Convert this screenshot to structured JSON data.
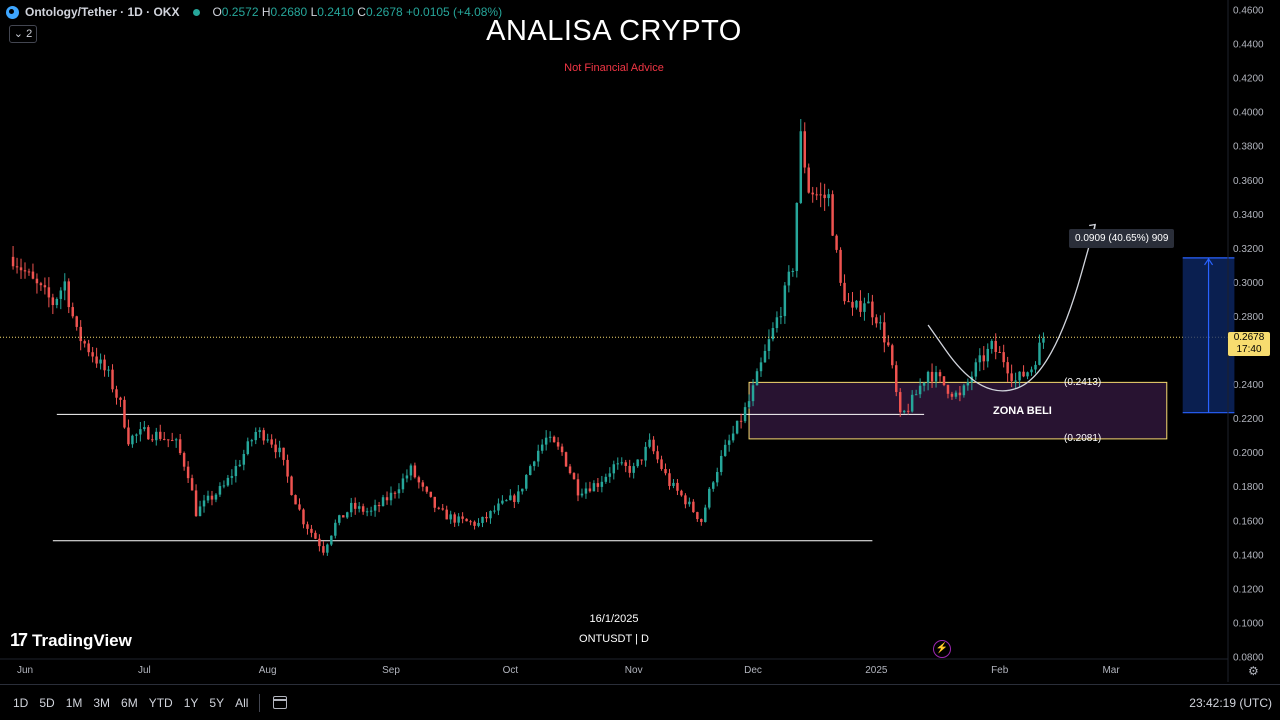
{
  "legend": {
    "symbol": "Ontology/Tether · 1D · OKX",
    "open_label": "O",
    "open": "0.2572",
    "high_label": "H",
    "high": "0.2680",
    "low_label": "L",
    "low": "0.2410",
    "close_label": "C",
    "close": "0.2678",
    "change": "+0.0105 (+4.08%)",
    "indicator_count": "⌄ 2",
    "up_color": "#26a69a",
    "down_color": "#ef5350"
  },
  "annotations": {
    "title": "ANALISA CRYPTO",
    "subtitle": "Not Financial Advice",
    "zone_label": "ZONA BELI",
    "zone_top_label": "(0.2413)",
    "zone_bottom_label": "(0.2081)",
    "measure_label": "0.0909 (40.65%) 909",
    "date_label": "16/1/2025",
    "pair_label": "ONTUSDT | D"
  },
  "last_price": {
    "value": "0.2678",
    "countdown": "17:40",
    "color": "#f7dc6f"
  },
  "branding": {
    "logo_text": "TradingView",
    "logo_mark": "17"
  },
  "toolbar": {
    "timeframes": [
      "1D",
      "5D",
      "1M",
      "3M",
      "6M",
      "YTD",
      "1Y",
      "5Y",
      "All"
    ],
    "clock": "23:42:19 (UTC)"
  },
  "chart_data": {
    "type": "candlestick",
    "y_axis": {
      "min": 0.08,
      "max": 0.46,
      "step": 0.02,
      "position": "right",
      "ticks": [
        "0.4600",
        "0.4400",
        "0.4200",
        "0.4000",
        "0.3800",
        "0.3600",
        "0.3400",
        "0.3200",
        "0.3000",
        "0.2800",
        "0.2600",
        "0.2400",
        "0.2200",
        "0.2000",
        "0.1800",
        "0.1600",
        "0.1400",
        "0.1200",
        "0.1000",
        "0.0800"
      ]
    },
    "x_axis": {
      "start": "2024-06-01",
      "end": "2025-03-05",
      "ticks": [
        {
          "label": "Jun",
          "date": "2024-06-01"
        },
        {
          "label": "Jul",
          "date": "2024-07-01"
        },
        {
          "label": "Aug",
          "date": "2024-08-01"
        },
        {
          "label": "Sep",
          "date": "2024-09-01"
        },
        {
          "label": "Oct",
          "date": "2024-10-01"
        },
        {
          "label": "Nov",
          "date": "2024-11-01"
        },
        {
          "label": "Dec",
          "date": "2024-12-01"
        },
        {
          "label": "2025",
          "date": "2025-01-01"
        },
        {
          "label": "Feb",
          "date": "2025-02-01"
        },
        {
          "label": "Mar",
          "date": "2025-03-01"
        }
      ]
    },
    "close_path": [
      [
        "2024-05-29",
        0.315
      ],
      [
        "2024-06-03",
        0.3
      ],
      [
        "2024-06-08",
        0.288
      ],
      [
        "2024-06-11",
        0.3
      ],
      [
        "2024-06-14",
        0.27
      ],
      [
        "2024-06-18",
        0.258
      ],
      [
        "2024-06-22",
        0.245
      ],
      [
        "2024-06-25",
        0.228
      ],
      [
        "2024-06-27",
        0.208
      ],
      [
        "2024-07-01",
        0.212
      ],
      [
        "2024-07-05",
        0.21
      ],
      [
        "2024-07-09",
        0.205
      ],
      [
        "2024-07-12",
        0.188
      ],
      [
        "2024-07-14",
        0.165
      ],
      [
        "2024-07-17",
        0.172
      ],
      [
        "2024-07-21",
        0.18
      ],
      [
        "2024-07-25",
        0.195
      ],
      [
        "2024-07-29",
        0.212
      ],
      [
        "2024-08-01",
        0.21
      ],
      [
        "2024-08-04",
        0.2
      ],
      [
        "2024-08-07",
        0.178
      ],
      [
        "2024-08-10",
        0.16
      ],
      [
        "2024-08-13",
        0.15
      ],
      [
        "2024-08-15",
        0.143
      ],
      [
        "2024-08-18",
        0.158
      ],
      [
        "2024-08-22",
        0.168
      ],
      [
        "2024-08-27",
        0.165
      ],
      [
        "2024-09-01",
        0.175
      ],
      [
        "2024-09-06",
        0.19
      ],
      [
        "2024-09-09",
        0.178
      ],
      [
        "2024-09-13",
        0.165
      ],
      [
        "2024-09-18",
        0.16
      ],
      [
        "2024-09-23",
        0.158
      ],
      [
        "2024-09-28",
        0.168
      ],
      [
        "2024-10-03",
        0.175
      ],
      [
        "2024-10-07",
        0.198
      ],
      [
        "2024-10-10",
        0.208
      ],
      [
        "2024-10-14",
        0.2
      ],
      [
        "2024-10-18",
        0.178
      ],
      [
        "2024-10-23",
        0.182
      ],
      [
        "2024-10-27",
        0.192
      ],
      [
        "2024-11-01",
        0.19
      ],
      [
        "2024-11-05",
        0.205
      ],
      [
        "2024-11-10",
        0.182
      ],
      [
        "2024-11-14",
        0.172
      ],
      [
        "2024-11-18",
        0.16
      ],
      [
        "2024-11-21",
        0.185
      ],
      [
        "2024-11-24",
        0.202
      ],
      [
        "2024-11-27",
        0.215
      ],
      [
        "2024-11-30",
        0.23
      ],
      [
        "2024-12-04",
        0.258
      ],
      [
        "2024-12-08",
        0.285
      ],
      [
        "2024-12-11",
        0.31
      ],
      [
        "2024-12-13",
        0.385
      ],
      [
        "2024-12-15",
        0.355
      ],
      [
        "2024-12-18",
        0.35
      ],
      [
        "2024-12-20",
        0.35
      ],
      [
        "2024-12-23",
        0.298
      ],
      [
        "2024-12-26",
        0.282
      ],
      [
        "2024-12-29",
        0.29
      ],
      [
        "2025-01-01",
        0.28
      ],
      [
        "2025-01-04",
        0.262
      ],
      [
        "2025-01-07",
        0.22
      ],
      [
        "2025-01-10",
        0.23
      ],
      [
        "2025-01-14",
        0.248
      ],
      [
        "2025-01-18",
        0.24
      ],
      [
        "2025-01-22",
        0.232
      ],
      [
        "2025-01-26",
        0.25
      ],
      [
        "2025-01-30",
        0.262
      ],
      [
        "2025-02-02",
        0.255
      ],
      [
        "2025-02-05",
        0.242
      ],
      [
        "2025-02-09",
        0.25
      ],
      [
        "2025-02-12",
        0.2678
      ]
    ],
    "horizontal_lines": [
      {
        "y": 0.2225,
        "from": "2024-06-09",
        "to": "2025-01-13",
        "color": "#ffffff"
      },
      {
        "y": 0.1483,
        "from": "2024-06-08",
        "to": "2024-12-31",
        "color": "#ffffff"
      }
    ],
    "zone": {
      "top": 0.2413,
      "bottom": 0.2081,
      "from": "2024-11-30",
      "to": "2025-03-15",
      "fill": "#2a1434",
      "border": "#f7dc6f"
    },
    "measure": {
      "from_price": 0.2235,
      "to_price": 0.3144,
      "from": "2025-03-19",
      "to": "2025-04-01",
      "delta": 0.0909,
      "percent": 40.65,
      "bars": 909,
      "color": "#2962ff"
    },
    "projection_curve": [
      [
        "2025-01-14",
        0.275
      ],
      [
        "2025-01-23",
        0.245
      ],
      [
        "2025-02-01",
        0.234
      ],
      [
        "2025-02-10",
        0.242
      ],
      [
        "2025-02-18",
        0.276
      ],
      [
        "2025-02-25",
        0.334
      ]
    ],
    "last_price_line": 0.2678,
    "grid": false,
    "crosshair_date": "2025-01-16"
  }
}
